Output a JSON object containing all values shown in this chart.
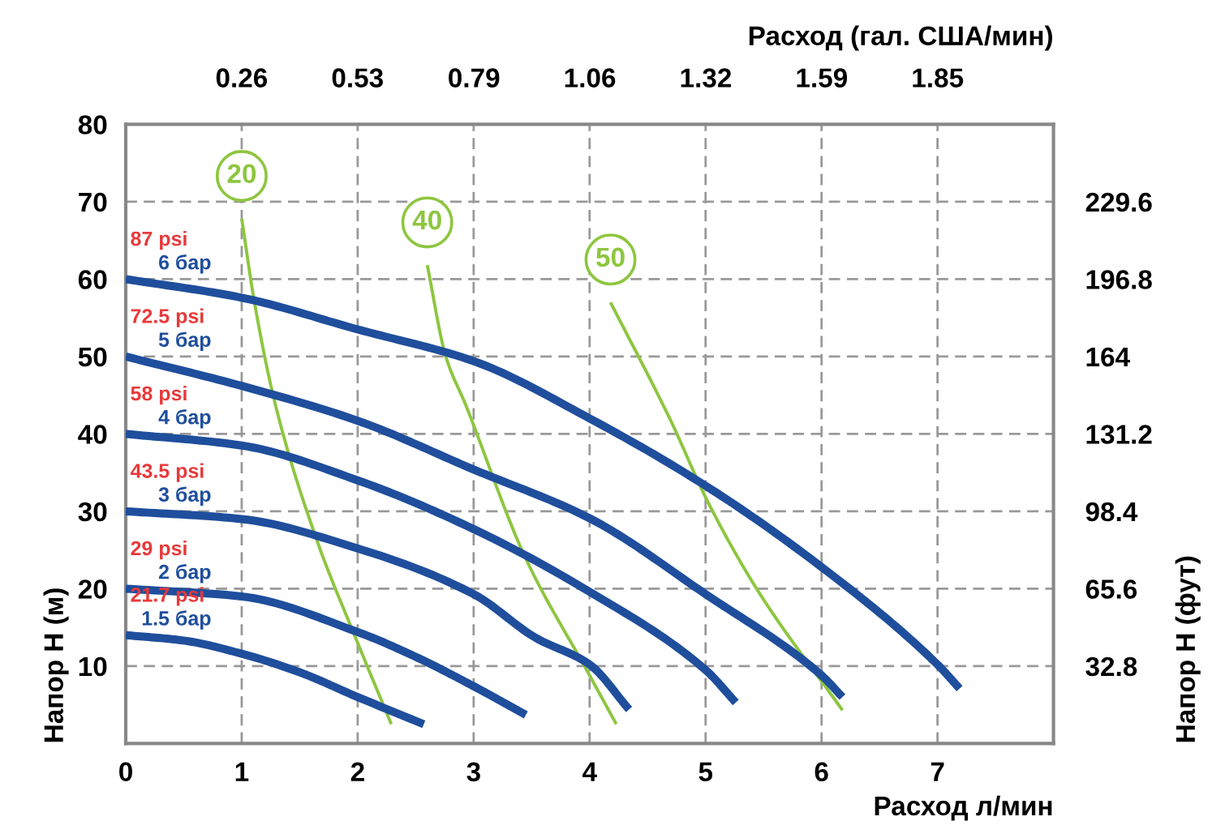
{
  "chart_data": {
    "type": "line",
    "xlabel": "Расход л/мин",
    "ylabel": "Напор H (м)",
    "y2label": "Напор H (фут)",
    "x2label": "Расход (гал. США/мин)",
    "xlim": [
      0,
      8
    ],
    "xticks": [
      0,
      1,
      2,
      3,
      4,
      5,
      6,
      7
    ],
    "ylim": [
      0,
      80
    ],
    "yticks": [
      10,
      20,
      30,
      40,
      50,
      60,
      70,
      80
    ],
    "x2lim": [
      0,
      2.113
    ],
    "x2ticks": [
      {
        "value": 0.264,
        "label": "0.26"
      },
      {
        "value": 0.528,
        "label": "0.53"
      },
      {
        "value": 0.793,
        "label": "0.79"
      },
      {
        "value": 1.057,
        "label": "1.06"
      },
      {
        "value": 1.321,
        "label": "1.32"
      },
      {
        "value": 1.585,
        "label": "1.59"
      },
      {
        "value": 1.849,
        "label": "1.85"
      }
    ],
    "y2lim": [
      0,
      262.4
    ],
    "y2ticks": [
      32.8,
      65.6,
      98.4,
      131.2,
      164,
      196.8,
      229.6
    ],
    "grid": true,
    "line_style": "solid",
    "marker": "none",
    "series": [
      {
        "name": "6 бар",
        "color": "#1f4e9c",
        "x": [
          0,
          1,
          2,
          3,
          4,
          5,
          6,
          7,
          7.19
        ],
        "values": [
          60,
          57.6,
          53.5,
          49.4,
          42,
          33.3,
          22.8,
          10.2,
          7.1
        ]
      },
      {
        "name": "5 бар",
        "color": "#1f4e9c",
        "x": [
          0,
          1,
          2,
          3,
          4,
          5,
          6,
          6.18
        ],
        "values": [
          50,
          46.2,
          41.7,
          35.4,
          29.1,
          19.3,
          8.8,
          6
        ]
      },
      {
        "name": "4 бар",
        "color": "#1f4e9c",
        "x": [
          0,
          1,
          2,
          3,
          4,
          5,
          5.26
        ],
        "values": [
          40,
          38.5,
          34,
          27.7,
          19.6,
          9.5,
          5.3
        ]
      },
      {
        "name": "3 бар",
        "color": "#1f4e9c",
        "x": [
          0,
          1,
          2,
          3,
          3.53,
          4,
          4.34
        ],
        "values": [
          30,
          29,
          25.2,
          19.3,
          13.7,
          10.2,
          4.4
        ]
      },
      {
        "name": "2 бар",
        "color": "#1f4e9c",
        "x": [
          0,
          1,
          2,
          2.5,
          3,
          3.45
        ],
        "values": [
          20,
          19,
          14.4,
          11.2,
          7.4,
          3.7
        ]
      },
      {
        "name": "1.5 бар",
        "color": "#1f4e9c",
        "x": [
          0,
          0.5,
          1,
          1.5,
          2,
          2.57
        ],
        "values": [
          14,
          13.3,
          11.6,
          9.2,
          6,
          2.5
        ]
      },
      {
        "name": "20",
        "color": "#8dc63f",
        "x": [
          1.0,
          1.11,
          1.29,
          1.64,
          2.0,
          2.29
        ],
        "values": [
          67.8,
          57,
          43.8,
          26.6,
          13,
          2.5
        ]
      },
      {
        "name": "40",
        "color": "#8dc63f",
        "x": [
          2.6,
          2.76,
          2.93,
          3.44,
          4.0,
          4.23
        ],
        "values": [
          61.8,
          50,
          43.8,
          24.2,
          8.8,
          2.5
        ]
      },
      {
        "name": "50",
        "color": "#8dc63f",
        "x": [
          4.18,
          4.7,
          5.02,
          5.44,
          6.18
        ],
        "values": [
          57,
          41.7,
          31.2,
          20,
          4.3
        ]
      }
    ],
    "annotations": [
      "87 psi",
      "72.5 psi",
      "58 psi",
      "43.5 psi",
      "29 psi",
      "21.7 psi"
    ]
  }
}
